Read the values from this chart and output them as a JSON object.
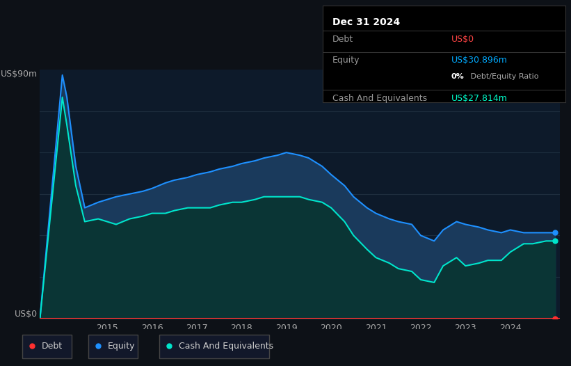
{
  "bg_color": "#0d1117",
  "plot_bg_color": "#0d1a2a",
  "title_box": {
    "date": "Dec 31 2024",
    "debt_label": "Debt",
    "debt_value": "US$0",
    "debt_color": "#ff4444",
    "equity_label": "Equity",
    "equity_value": "US$30.896m",
    "equity_color": "#00aaff",
    "ratio_label_bold": "0%",
    "ratio_label_normal": " Debt/Equity Ratio",
    "cash_label": "Cash And Equivalents",
    "cash_value": "US$27.814m",
    "cash_color": "#00ffcc"
  },
  "ylabel_top": "US$90m",
  "ylabel_bottom": "US$0",
  "x_labels": [
    "2015",
    "2016",
    "2017",
    "2018",
    "2019",
    "2020",
    "2021",
    "2022",
    "2023",
    "2024"
  ],
  "equity_color": "#1e90ff",
  "cash_color": "#00e5cc",
  "debt_color": "#ff3030",
  "equity_fill": "#1a3a5c",
  "cash_fill": "#0a3535",
  "grid_color": "#1e2e3e",
  "separator_color": "#333333",
  "legend_items": [
    {
      "label": "Debt",
      "color": "#ff3030"
    },
    {
      "label": "Equity",
      "color": "#1e90ff"
    },
    {
      "label": "Cash And Equivalents",
      "color": "#00e5cc"
    }
  ],
  "years": [
    2013.5,
    2014.0,
    2014.1,
    2014.3,
    2014.5,
    2014.8,
    2015.0,
    2015.2,
    2015.5,
    2015.8,
    2016.0,
    2016.3,
    2016.5,
    2016.8,
    2017.0,
    2017.3,
    2017.5,
    2017.8,
    2018.0,
    2018.3,
    2018.5,
    2018.8,
    2019.0,
    2019.3,
    2019.5,
    2019.8,
    2020.0,
    2020.3,
    2020.5,
    2020.8,
    2021.0,
    2021.3,
    2021.5,
    2021.8,
    2022.0,
    2022.3,
    2022.5,
    2022.8,
    2023.0,
    2023.3,
    2023.5,
    2023.8,
    2024.0,
    2024.3,
    2024.5,
    2024.8,
    2025.0
  ],
  "equity_values": [
    0,
    88,
    80,
    55,
    40,
    42,
    43,
    44,
    45,
    46,
    47,
    49,
    50,
    51,
    52,
    53,
    54,
    55,
    56,
    57,
    58,
    59,
    60,
    59,
    58,
    55,
    52,
    48,
    44,
    40,
    38,
    36,
    35,
    34,
    30,
    28,
    32,
    35,
    34,
    33,
    32,
    31,
    32,
    31,
    31,
    31,
    31
  ],
  "cash_values": [
    0,
    80,
    70,
    48,
    35,
    36,
    35,
    34,
    36,
    37,
    38,
    38,
    39,
    40,
    40,
    40,
    41,
    42,
    42,
    43,
    44,
    44,
    44,
    44,
    43,
    42,
    40,
    35,
    30,
    25,
    22,
    20,
    18,
    17,
    14,
    13,
    19,
    22,
    19,
    20,
    21,
    21,
    24,
    27,
    27,
    28,
    28
  ],
  "debt_values": [
    0,
    0,
    0,
    0,
    0,
    0,
    0,
    0,
    0,
    0,
    0,
    0,
    0,
    0,
    0,
    0,
    0,
    0,
    0,
    0,
    0,
    0,
    0,
    0,
    0,
    0,
    0,
    0,
    0,
    0,
    0,
    0,
    0,
    0,
    0,
    0,
    0,
    0,
    0,
    0,
    0,
    0,
    0,
    0,
    0,
    0,
    0
  ],
  "xmin": 2013.5,
  "xmax": 2025.1,
  "ymin": 0,
  "ymax": 90
}
